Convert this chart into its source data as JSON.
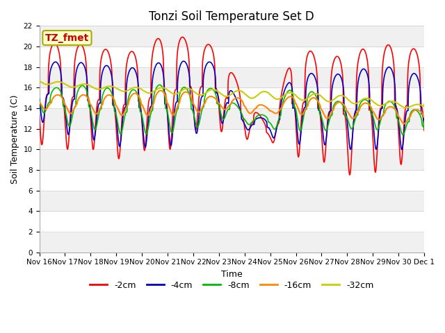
{
  "title": "Tonzi Soil Temperature Set D",
  "xlabel": "Time",
  "ylabel": "Soil Temperature (C)",
  "ylim": [
    0,
    22
  ],
  "xlim": [
    0,
    15
  ],
  "x_tick_labels": [
    "Nov 16",
    "Nov 17",
    "Nov 18",
    "Nov 19",
    "Nov 20",
    "Nov 21",
    "Nov 22",
    "Nov 23",
    "Nov 24",
    "Nov 25",
    "Nov 26",
    "Nov 27",
    "Nov 28",
    "Nov 29",
    "Nov 30",
    "Dec 1"
  ],
  "annotation_text": "TZ_fmet",
  "annotation_bg": "#ffffcc",
  "annotation_border": "#aaaa00",
  "annotation_text_color": "#cc0000",
  "line_colors": [
    "#ff0000",
    "#0000cc",
    "#00bb00",
    "#ff8800",
    "#cccc00"
  ],
  "line_labels": [
    "-2cm",
    "-4cm",
    "-8cm",
    "-16cm",
    "-32cm"
  ],
  "bg_bands": [
    {
      "ymin": 0,
      "ymax": 2,
      "color": "#f0f0f0"
    },
    {
      "ymin": 2,
      "ymax": 4,
      "color": "#ffffff"
    },
    {
      "ymin": 4,
      "ymax": 6,
      "color": "#f0f0f0"
    },
    {
      "ymin": 6,
      "ymax": 8,
      "color": "#ffffff"
    },
    {
      "ymin": 8,
      "ymax": 10,
      "color": "#f0f0f0"
    },
    {
      "ymin": 10,
      "ymax": 12,
      "color": "#ffffff"
    },
    {
      "ymin": 12,
      "ymax": 14,
      "color": "#f0f0f0"
    },
    {
      "ymin": 14,
      "ymax": 16,
      "color": "#ffffff"
    },
    {
      "ymin": 16,
      "ymax": 18,
      "color": "#f0f0f0"
    },
    {
      "ymin": 18,
      "ymax": 20,
      "color": "#ffffff"
    },
    {
      "ymin": 20,
      "ymax": 22,
      "color": "#f0f0f0"
    }
  ],
  "title_fontsize": 12,
  "label_fontsize": 9,
  "tick_fontsize": 7.5
}
